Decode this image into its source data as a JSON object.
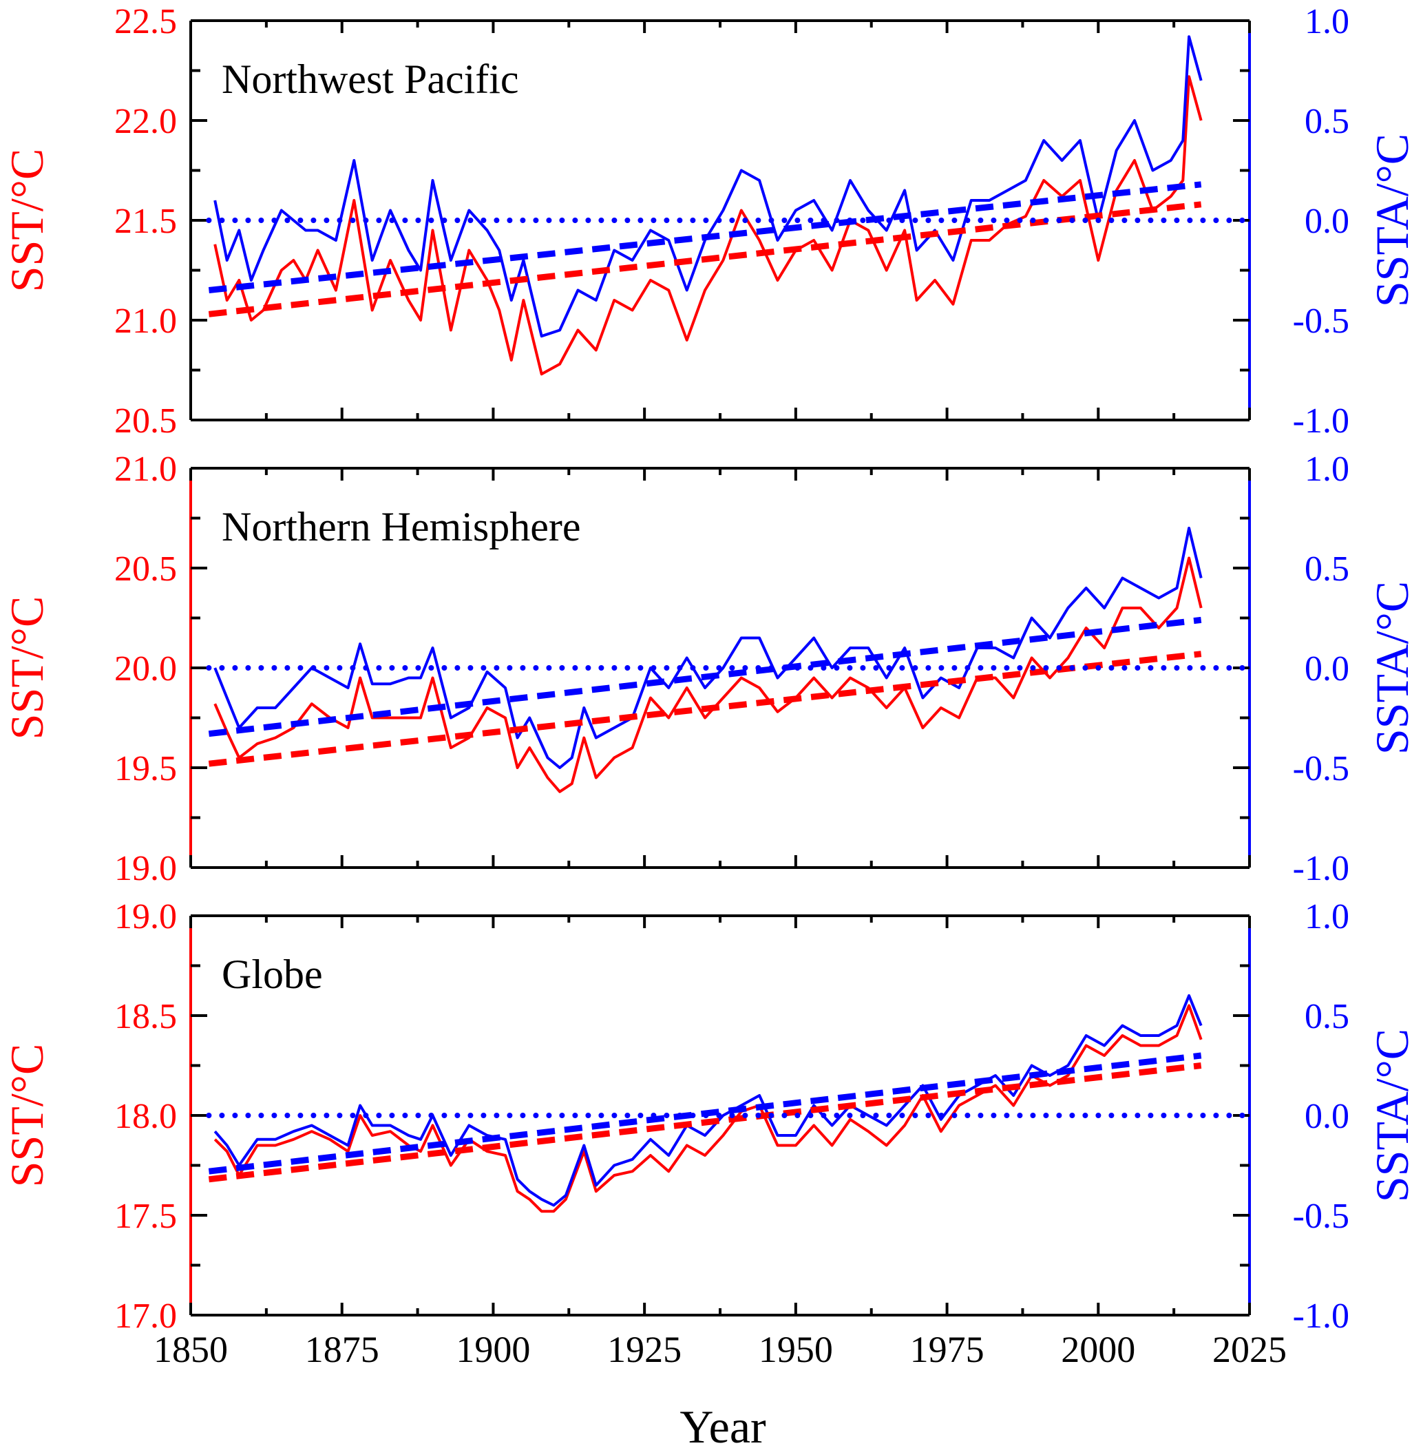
{
  "colors": {
    "sst": "#ff0000",
    "ssta": "#0000ff",
    "frame": "#000000"
  },
  "xaxis": {
    "label": "Year",
    "range": [
      1850,
      2025
    ],
    "ticks": [
      1850,
      1875,
      1900,
      1925,
      1950,
      1975,
      2000,
      2025
    ]
  },
  "chart_data": [
    {
      "type": "line",
      "title": "Northwest Pacific",
      "ylabel_left": "SST/°C",
      "ylabel_right": "SSTA/°C",
      "ylim_left": [
        20.5,
        22.5
      ],
      "ylim_right": [
        -1.0,
        1.0
      ],
      "ticks_left": [
        "20.5",
        "21.0",
        "21.5",
        "22.0",
        "22.5"
      ],
      "ticks_right": [
        "-1.0",
        "-0.5",
        "0.0",
        "0.5",
        "1.0"
      ],
      "grid": false,
      "series": [
        {
          "axis": "left",
          "style": "solid",
          "color": "#ff0000",
          "x": [
            1854,
            1856,
            1858,
            1860,
            1862,
            1865,
            1867,
            1869,
            1871,
            1874,
            1877,
            1880,
            1883,
            1886,
            1888,
            1890,
            1893,
            1896,
            1899,
            1901,
            1903,
            1905,
            1908,
            1911,
            1914,
            1917,
            1920,
            1923,
            1926,
            1929,
            1932,
            1935,
            1938,
            1941,
            1944,
            1947,
            1950,
            1953,
            1956,
            1959,
            1962,
            1965,
            1968,
            1970,
            1973,
            1976,
            1979,
            1982,
            1985,
            1988,
            1991,
            1994,
            1997,
            2000,
            2003,
            2006,
            2009,
            2012,
            2014,
            2015,
            2017
          ],
          "y": [
            21.38,
            21.1,
            21.2,
            21.0,
            21.05,
            21.25,
            21.3,
            21.2,
            21.35,
            21.15,
            21.6,
            21.05,
            21.3,
            21.1,
            21.0,
            21.45,
            20.95,
            21.35,
            21.2,
            21.05,
            20.8,
            21.1,
            20.73,
            20.78,
            20.95,
            20.85,
            21.1,
            21.05,
            21.2,
            21.15,
            20.9,
            21.15,
            21.3,
            21.55,
            21.4,
            21.2,
            21.35,
            21.4,
            21.25,
            21.5,
            21.45,
            21.25,
            21.45,
            21.1,
            21.2,
            21.08,
            21.4,
            21.4,
            21.48,
            21.52,
            21.7,
            21.62,
            21.7,
            21.3,
            21.65,
            21.8,
            21.55,
            21.62,
            21.7,
            22.22,
            22.0
          ]
        },
        {
          "axis": "right",
          "style": "solid",
          "color": "#0000ff",
          "x": [
            1854,
            1856,
            1858,
            1860,
            1862,
            1865,
            1867,
            1869,
            1871,
            1874,
            1877,
            1880,
            1883,
            1886,
            1888,
            1890,
            1893,
            1896,
            1899,
            1901,
            1903,
            1905,
            1908,
            1911,
            1914,
            1917,
            1920,
            1923,
            1926,
            1929,
            1932,
            1935,
            1938,
            1941,
            1944,
            1947,
            1950,
            1953,
            1956,
            1959,
            1962,
            1965,
            1968,
            1970,
            1973,
            1976,
            1979,
            1982,
            1985,
            1988,
            1991,
            1994,
            1997,
            2000,
            2003,
            2006,
            2009,
            2012,
            2014,
            2015,
            2017
          ],
          "y": [
            0.1,
            -0.2,
            -0.05,
            -0.3,
            -0.15,
            0.05,
            0.0,
            -0.05,
            -0.05,
            -0.1,
            0.3,
            -0.2,
            0.05,
            -0.15,
            -0.25,
            0.2,
            -0.2,
            0.05,
            -0.05,
            -0.15,
            -0.4,
            -0.2,
            -0.58,
            -0.55,
            -0.35,
            -0.4,
            -0.15,
            -0.2,
            -0.05,
            -0.1,
            -0.35,
            -0.1,
            0.05,
            0.25,
            0.2,
            -0.1,
            0.05,
            0.1,
            -0.05,
            0.2,
            0.05,
            -0.05,
            0.15,
            -0.15,
            -0.05,
            -0.2,
            0.1,
            0.1,
            0.15,
            0.2,
            0.4,
            0.3,
            0.4,
            0.0,
            0.35,
            0.5,
            0.25,
            0.3,
            0.4,
            0.92,
            0.7
          ]
        },
        {
          "axis": "left",
          "style": "dashed",
          "color": "#ff0000",
          "x": [
            1853,
            2017
          ],
          "y": [
            21.03,
            21.58
          ]
        },
        {
          "axis": "right",
          "style": "dashed",
          "color": "#0000ff",
          "x": [
            1853,
            2017
          ],
          "y": [
            -0.35,
            0.18
          ]
        },
        {
          "axis": "right",
          "style": "dotted",
          "color": "#0000ff",
          "x": [
            1853,
            2025
          ],
          "y": [
            0.0,
            0.0
          ]
        }
      ]
    },
    {
      "type": "line",
      "title": "Northern Hemisphere",
      "ylabel_left": "SST/°C",
      "ylabel_right": "SSTA/°C",
      "ylim_left": [
        19.0,
        21.0
      ],
      "ylim_right": [
        -1.0,
        1.0
      ],
      "ticks_left": [
        "19.0",
        "19.5",
        "20.0",
        "20.5",
        "21.0"
      ],
      "ticks_right": [
        "-1.0",
        "-0.5",
        "0.0",
        "0.5",
        "1.0"
      ],
      "grid": false,
      "series": [
        {
          "axis": "left",
          "style": "solid",
          "color": "#ff0000",
          "x": [
            1854,
            1856,
            1858,
            1861,
            1864,
            1867,
            1870,
            1873,
            1876,
            1878,
            1880,
            1883,
            1886,
            1888,
            1890,
            1893,
            1896,
            1899,
            1902,
            1904,
            1906,
            1909,
            1911,
            1913,
            1915,
            1917,
            1920,
            1923,
            1926,
            1929,
            1932,
            1935,
            1938,
            1941,
            1944,
            1947,
            1950,
            1953,
            1956,
            1959,
            1962,
            1965,
            1968,
            1971,
            1974,
            1977,
            1980,
            1983,
            1986,
            1989,
            1992,
            1995,
            1998,
            2001,
            2004,
            2007,
            2010,
            2013,
            2015,
            2017
          ],
          "y": [
            19.82,
            19.68,
            19.55,
            19.62,
            19.65,
            19.7,
            19.82,
            19.75,
            19.7,
            19.95,
            19.75,
            19.75,
            19.75,
            19.75,
            19.95,
            19.6,
            19.65,
            19.8,
            19.75,
            19.5,
            19.6,
            19.45,
            19.38,
            19.42,
            19.65,
            19.45,
            19.55,
            19.6,
            19.85,
            19.75,
            19.9,
            19.75,
            19.85,
            19.95,
            19.9,
            19.78,
            19.85,
            19.95,
            19.85,
            19.95,
            19.9,
            19.8,
            19.9,
            19.7,
            19.8,
            19.75,
            19.95,
            19.95,
            19.85,
            20.05,
            19.95,
            20.05,
            20.2,
            20.1,
            20.3,
            20.3,
            20.2,
            20.3,
            20.55,
            20.3
          ]
        },
        {
          "axis": "right",
          "style": "solid",
          "color": "#0000ff",
          "x": [
            1854,
            1856,
            1858,
            1861,
            1864,
            1867,
            1870,
            1873,
            1876,
            1878,
            1880,
            1883,
            1886,
            1888,
            1890,
            1893,
            1896,
            1899,
            1902,
            1904,
            1906,
            1909,
            1911,
            1913,
            1915,
            1917,
            1920,
            1923,
            1926,
            1929,
            1932,
            1935,
            1938,
            1941,
            1944,
            1947,
            1950,
            1953,
            1956,
            1959,
            1962,
            1965,
            1968,
            1971,
            1974,
            1977,
            1980,
            1983,
            1986,
            1989,
            1992,
            1995,
            1998,
            2001,
            2004,
            2007,
            2010,
            2013,
            2015,
            2017
          ],
          "y": [
            0.0,
            -0.15,
            -0.3,
            -0.2,
            -0.2,
            -0.1,
            0.0,
            -0.05,
            -0.1,
            0.12,
            -0.08,
            -0.08,
            -0.05,
            -0.05,
            0.1,
            -0.25,
            -0.2,
            -0.02,
            -0.1,
            -0.35,
            -0.25,
            -0.45,
            -0.5,
            -0.45,
            -0.2,
            -0.35,
            -0.3,
            -0.25,
            0.0,
            -0.1,
            0.05,
            -0.1,
            0.0,
            0.15,
            0.15,
            -0.05,
            0.05,
            0.15,
            0.0,
            0.1,
            0.1,
            -0.05,
            0.1,
            -0.15,
            -0.05,
            -0.1,
            0.1,
            0.1,
            0.05,
            0.25,
            0.15,
            0.3,
            0.4,
            0.3,
            0.45,
            0.4,
            0.35,
            0.4,
            0.7,
            0.45
          ]
        },
        {
          "axis": "left",
          "style": "dashed",
          "color": "#ff0000",
          "x": [
            1853,
            2017
          ],
          "y": [
            19.52,
            20.07
          ]
        },
        {
          "axis": "right",
          "style": "dashed",
          "color": "#0000ff",
          "x": [
            1853,
            2017
          ],
          "y": [
            -0.33,
            0.24
          ]
        },
        {
          "axis": "right",
          "style": "dotted",
          "color": "#0000ff",
          "x": [
            1853,
            2025
          ],
          "y": [
            0.0,
            0.0
          ]
        }
      ]
    },
    {
      "type": "line",
      "title": "Globe",
      "ylabel_left": "SST/°C",
      "ylabel_right": "SSTA/°C",
      "ylim_left": [
        17.0,
        19.0
      ],
      "ylim_right": [
        -1.0,
        1.0
      ],
      "ticks_left": [
        "17.0",
        "17.5",
        "18.0",
        "18.5",
        "19.0"
      ],
      "ticks_right": [
        "-1.0",
        "-0.5",
        "0.0",
        "0.5",
        "1.0"
      ],
      "grid": false,
      "series": [
        {
          "axis": "left",
          "style": "solid",
          "color": "#ff0000",
          "x": [
            1854,
            1856,
            1858,
            1861,
            1864,
            1867,
            1870,
            1873,
            1876,
            1878,
            1880,
            1883,
            1886,
            1888,
            1890,
            1893,
            1896,
            1899,
            1902,
            1904,
            1906,
            1908,
            1910,
            1912,
            1915,
            1917,
            1920,
            1923,
            1926,
            1929,
            1932,
            1935,
            1938,
            1941,
            1944,
            1947,
            1950,
            1953,
            1956,
            1959,
            1962,
            1965,
            1968,
            1971,
            1974,
            1977,
            1980,
            1983,
            1986,
            1989,
            1992,
            1995,
            1998,
            2001,
            2004,
            2007,
            2010,
            2013,
            2015,
            2017
          ],
          "y": [
            17.88,
            17.82,
            17.7,
            17.85,
            17.85,
            17.88,
            17.92,
            17.88,
            17.82,
            18.0,
            17.9,
            17.92,
            17.85,
            17.82,
            17.95,
            17.75,
            17.88,
            17.82,
            17.8,
            17.62,
            17.58,
            17.52,
            17.52,
            17.58,
            17.82,
            17.62,
            17.7,
            17.72,
            17.8,
            17.72,
            17.85,
            17.8,
            17.9,
            18.02,
            18.05,
            17.85,
            17.85,
            17.95,
            17.85,
            17.98,
            17.92,
            17.85,
            17.95,
            18.1,
            17.92,
            18.05,
            18.1,
            18.15,
            18.05,
            18.2,
            18.15,
            18.2,
            18.35,
            18.3,
            18.4,
            18.35,
            18.35,
            18.4,
            18.55,
            18.38
          ]
        },
        {
          "axis": "right",
          "style": "solid",
          "color": "#0000ff",
          "x": [
            1854,
            1856,
            1858,
            1861,
            1864,
            1867,
            1870,
            1873,
            1876,
            1878,
            1880,
            1883,
            1886,
            1888,
            1890,
            1893,
            1896,
            1899,
            1902,
            1904,
            1906,
            1908,
            1910,
            1912,
            1915,
            1917,
            1920,
            1923,
            1926,
            1929,
            1932,
            1935,
            1938,
            1941,
            1944,
            1947,
            1950,
            1953,
            1956,
            1959,
            1962,
            1965,
            1968,
            1971,
            1974,
            1977,
            1980,
            1983,
            1986,
            1989,
            1992,
            1995,
            1998,
            2001,
            2004,
            2007,
            2010,
            2013,
            2015,
            2017
          ],
          "y": [
            -0.08,
            -0.15,
            -0.25,
            -0.12,
            -0.12,
            -0.08,
            -0.05,
            -0.1,
            -0.15,
            0.05,
            -0.05,
            -0.05,
            -0.1,
            -0.12,
            0.0,
            -0.2,
            -0.05,
            -0.1,
            -0.12,
            -0.32,
            -0.38,
            -0.42,
            -0.45,
            -0.4,
            -0.15,
            -0.35,
            -0.25,
            -0.22,
            -0.12,
            -0.2,
            -0.05,
            -0.1,
            0.0,
            0.05,
            0.1,
            -0.1,
            -0.1,
            0.05,
            -0.05,
            0.05,
            0.0,
            -0.05,
            0.05,
            0.15,
            -0.02,
            0.1,
            0.15,
            0.2,
            0.1,
            0.25,
            0.2,
            0.25,
            0.4,
            0.35,
            0.45,
            0.4,
            0.4,
            0.45,
            0.6,
            0.45
          ]
        },
        {
          "axis": "left",
          "style": "dashed",
          "color": "#ff0000",
          "x": [
            1853,
            2017
          ],
          "y": [
            17.68,
            18.25
          ]
        },
        {
          "axis": "right",
          "style": "dashed",
          "color": "#0000ff",
          "x": [
            1853,
            2017
          ],
          "y": [
            -0.28,
            0.3
          ]
        },
        {
          "axis": "right",
          "style": "dotted",
          "color": "#0000ff",
          "x": [
            1853,
            2025
          ],
          "y": [
            0.0,
            0.0
          ]
        }
      ]
    }
  ]
}
